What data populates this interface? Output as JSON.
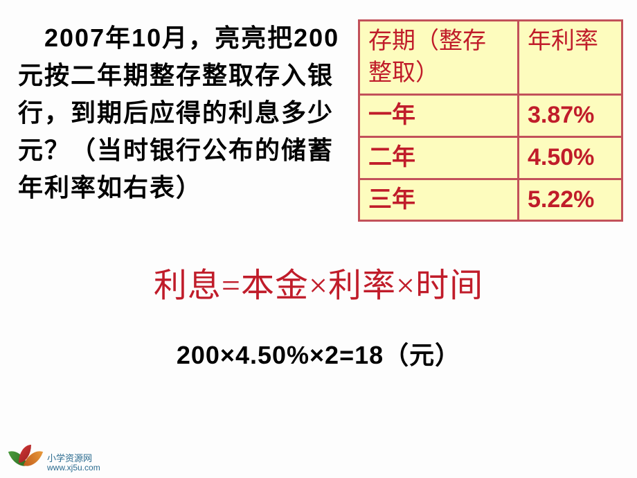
{
  "question": "　2007年10月，亮亮把200元按二年期整存整取存入银行，到期后应得的利息多少元？（当时银行公布的储蓄年利率如右表）",
  "table": {
    "header_term": "存期（整存整取）",
    "header_rate": "年利率",
    "rows": [
      {
        "term": "一年",
        "rate": "3.87%"
      },
      {
        "term": "二年",
        "rate": "4.50%"
      },
      {
        "term": "三年",
        "rate": "5.22%"
      }
    ],
    "colors": {
      "background": "#fdfcbe",
      "border": "#c2515a",
      "text": "#c01c2a"
    }
  },
  "formula": "利息=本金×利率×时间",
  "calculation": "200×4.50%×2=18（元）",
  "footer": {
    "title": "小学资源网",
    "url": "www.xj5u.com"
  },
  "colors": {
    "background": "#fdfdfd",
    "text_black": "#000000",
    "text_red": "#c01c2a",
    "footer_text": "#2a6b8f"
  },
  "fonts": {
    "body_size": 36,
    "formula_size": 48,
    "calculation_size": 36
  }
}
